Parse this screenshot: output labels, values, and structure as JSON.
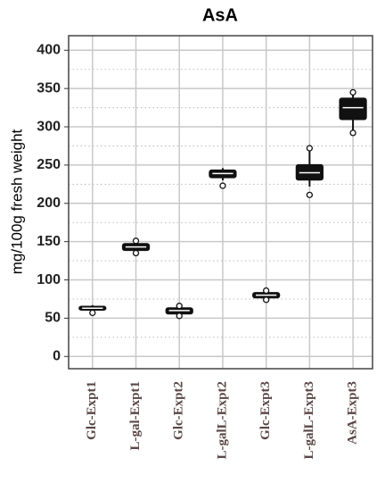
{
  "chart_data": {
    "type": "boxplot",
    "title": "AsA",
    "y_label": "mg/100g fresh weight",
    "categories": [
      "Glc-Expt1",
      "L-gal-Expt1",
      "Glc-Expt2",
      "L-galL-Expt2",
      "Glc-Expt3",
      "L-galL-Expt3",
      "AsA-Expt3"
    ],
    "boxes": [
      {
        "min": 60,
        "q1": 61,
        "median": 63,
        "q3": 65,
        "max": 67,
        "outliers": [
          57
        ]
      },
      {
        "min": 137,
        "q1": 139,
        "median": 143,
        "q3": 147,
        "max": 151,
        "outliers": [
          135,
          151
        ]
      },
      {
        "min": 54,
        "q1": 56,
        "median": 60,
        "q3": 63,
        "max": 66,
        "outliers": [
          53,
          66
        ]
      },
      {
        "min": 230,
        "q1": 234,
        "median": 239,
        "q3": 243,
        "max": 246,
        "outliers": [
          223
        ]
      },
      {
        "min": 75,
        "q1": 77,
        "median": 80,
        "q3": 83,
        "max": 85,
        "outliers": [
          74,
          86
        ]
      },
      {
        "min": 222,
        "q1": 231,
        "median": 240,
        "q3": 250,
        "max": 270,
        "outliers": [
          211,
          272
        ]
      },
      {
        "min": 295,
        "q1": 310,
        "median": 325,
        "q3": 337,
        "max": 345,
        "outliers": [
          292,
          345
        ]
      }
    ],
    "color": "#111111",
    "median_color": "#ffffff",
    "ylim": [
      -16,
      419
    ],
    "yticks": [
      0,
      50,
      100,
      150,
      200,
      250,
      300,
      350,
      400
    ],
    "minor_yticks": [
      25,
      75,
      125,
      175,
      225,
      275,
      325,
      375
    ],
    "grid": true
  }
}
